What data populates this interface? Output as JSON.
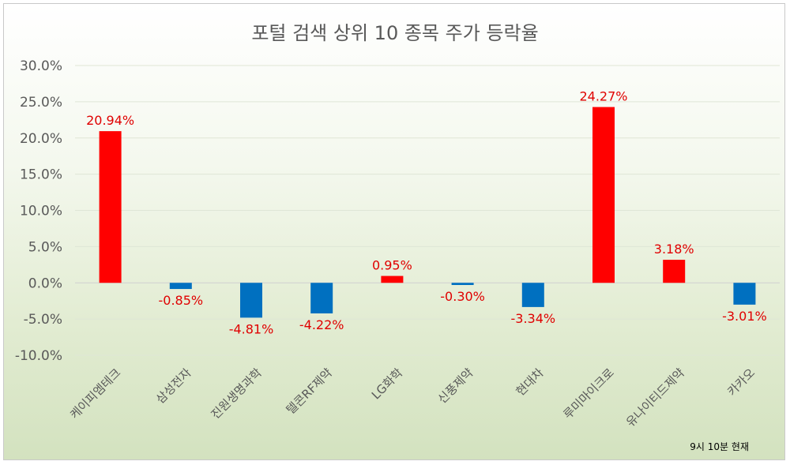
{
  "chart_data": {
    "type": "bar",
    "title": "포털 검색 상위 10 종목 주가 등락율",
    "categories": [
      "케이피엠테크",
      "삼성전자",
      "진원생명과학",
      "텔콘RF제약",
      "LG화학",
      "신풍제약",
      "현대차",
      "루미마이크로",
      "유나이티드제약",
      "카카오"
    ],
    "values": [
      20.94,
      -0.85,
      -4.81,
      -4.22,
      0.95,
      -0.3,
      -3.34,
      24.27,
      3.18,
      -3.01
    ],
    "data_labels": [
      "20.94%",
      "-0.85%",
      "-4.81%",
      "-4.22%",
      "0.95%",
      "-0.30%",
      "-3.34%",
      "24.27%",
      "3.18%",
      "-3.01%"
    ],
    "y_ticks": [
      30,
      25,
      20,
      15,
      10,
      5,
      0,
      -5,
      -10
    ],
    "y_tick_labels": [
      "30.0%",
      "25.0%",
      "20.0%",
      "15.0%",
      "10.0%",
      "5.0%",
      "0.0%",
      "-5.0%",
      "-10.0%"
    ],
    "ylim": [
      -10,
      30
    ],
    "grid": true,
    "colors": {
      "positive": "#ff0000",
      "negative": "#0070c0",
      "label": "#e00000"
    },
    "note": "9시 10분 현재"
  }
}
